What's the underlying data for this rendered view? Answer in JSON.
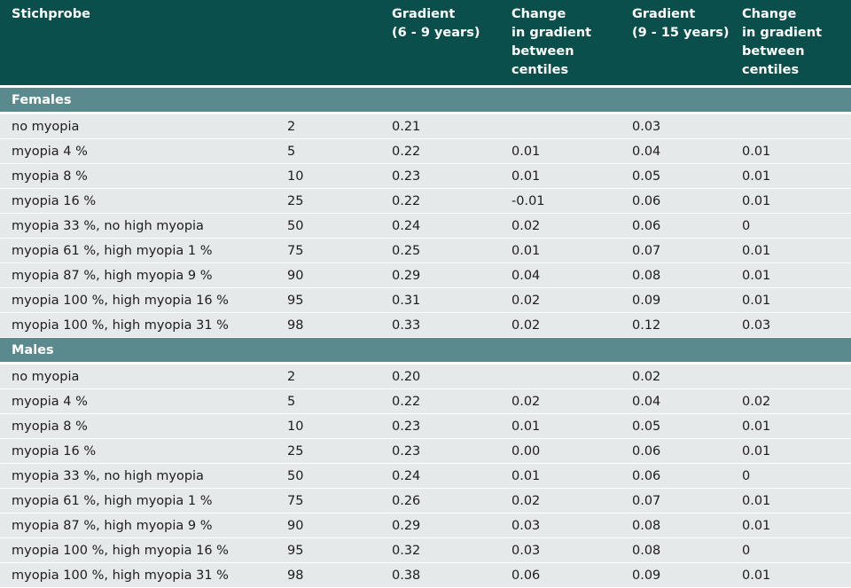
{
  "header": {
    "col1": [
      "Stichprobe"
    ],
    "col2": [],
    "col3": [
      "Gradient",
      "(6 - 9 years)"
    ],
    "col4": [
      "Change",
      "in gradient",
      "between",
      "centiles"
    ],
    "col5": [
      "Gradient",
      "(9 - 15 years)"
    ],
    "col6": [
      "Change",
      "in gradient",
      "between",
      "centiles"
    ]
  },
  "sections": [
    {
      "title": "Females",
      "rows": [
        {
          "label": "no myopia",
          "centile": "2",
          "g1": "0.21",
          "c1": "",
          "g2": "0.03",
          "c2": ""
        },
        {
          "label": "myopia 4 %",
          "centile": "5",
          "g1": "0.22",
          "c1": "0.01",
          "g2": "0.04",
          "c2": "0.01"
        },
        {
          "label": "myopia 8 %",
          "centile": "10",
          "g1": "0.23",
          "c1": "0.01",
          "g2": "0.05",
          "c2": "0.01"
        },
        {
          "label": "myopia 16 %",
          "centile": "25",
          "g1": "0.22",
          "c1": "-0.01",
          "g2": "0.06",
          "c2": "0.01"
        },
        {
          "label": "myopia 33 %, no high myopia",
          "centile": "50",
          "g1": "0.24",
          "c1": "0.02",
          "g2": "0.06",
          "c2": "0"
        },
        {
          "label": "myopia 61 %, high myopia 1 %",
          "centile": "75",
          "g1": "0.25",
          "c1": "0.01",
          "g2": "0.07",
          "c2": "0.01"
        },
        {
          "label": "myopia 87 %, high myopia 9 %",
          "centile": "90",
          "g1": "0.29",
          "c1": "0.04",
          "g2": "0.08",
          "c2": "0.01"
        },
        {
          "label": "myopia 100 %, high myopia 16 %",
          "centile": "95",
          "g1": "0.31",
          "c1": "0.02",
          "g2": "0.09",
          "c2": "0.01"
        },
        {
          "label": "myopia 100 %, high myopia 31 %",
          "centile": "98",
          "g1": "0.33",
          "c1": "0.02",
          "g2": "0.12",
          "c2": "0.03"
        }
      ]
    },
    {
      "title": "Males",
      "rows": [
        {
          "label": "no myopia",
          "centile": "2",
          "g1": "0.20",
          "c1": "",
          "g2": "0.02",
          "c2": ""
        },
        {
          "label": "myopia 4 %",
          "centile": "5",
          "g1": "0.22",
          "c1": "0.02",
          "g2": "0.04",
          "c2": "0.02"
        },
        {
          "label": "myopia 8 %",
          "centile": "10",
          "g1": "0.23",
          "c1": "0.01",
          "g2": "0.05",
          "c2": "0.01"
        },
        {
          "label": "myopia 16 %",
          "centile": "25",
          "g1": "0.23",
          "c1": "0.00",
          "g2": "0.06",
          "c2": "0.01"
        },
        {
          "label": "myopia 33 %, no high myopia",
          "centile": "50",
          "g1": "0.24",
          "c1": "0.01",
          "g2": "0.06",
          "c2": "0"
        },
        {
          "label": "myopia 61 %, high myopia 1 %",
          "centile": "75",
          "g1": "0.26",
          "c1": "0.02",
          "g2": "0.07",
          "c2": "0.01"
        },
        {
          "label": "myopia 87 %, high myopia 9 %",
          "centile": "90",
          "g1": "0.29",
          "c1": "0.03",
          "g2": "0.08",
          "c2": "0.01"
        },
        {
          "label": "myopia 100 %, high myopia 16 %",
          "centile": "95",
          "g1": "0.32",
          "c1": "0.03",
          "g2": "0.08",
          "c2": "0"
        },
        {
          "label": "myopia 100 %, high myopia 31 %",
          "centile": "98",
          "g1": "0.38",
          "c1": "0.06",
          "g2": "0.09",
          "c2": "0.01"
        }
      ]
    }
  ],
  "colors": {
    "header_bg": "#0b4f4c",
    "section_bg": "#5a8a8e",
    "row_bg": "#e5e9ea"
  }
}
